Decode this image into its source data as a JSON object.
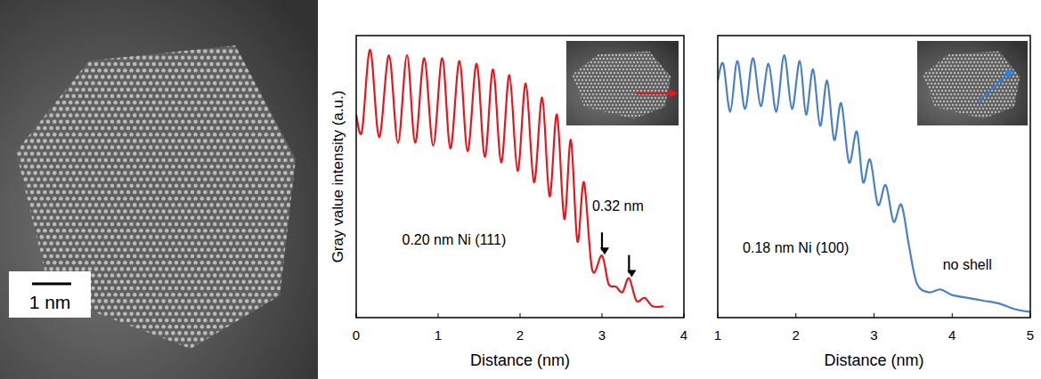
{
  "image": {
    "scale_bar": "1 nm"
  },
  "chart_data": [
    {
      "type": "line",
      "y_label": "Gray value intensity (a.u.)",
      "x_label": "Distance (nm)",
      "color": "#e4171f",
      "xlim": [
        0,
        4
      ],
      "xticks": [
        0,
        1,
        2,
        3,
        4
      ],
      "ylim": [
        0,
        100
      ],
      "tick_labels": "x",
      "x": [
        0,
        0.07,
        0.17,
        0.28,
        0.4,
        0.51,
        0.62,
        0.72,
        0.83,
        0.94,
        1.05,
        1.15,
        1.26,
        1.36,
        1.47,
        1.57,
        1.67,
        1.77,
        1.87,
        1.97,
        2.07,
        2.17,
        2.27,
        2.36,
        2.45,
        2.54,
        2.62,
        2.7,
        2.78,
        2.88,
        3.0,
        3.08,
        3.17,
        3.25,
        3.33,
        3.42,
        3.52,
        3.62,
        3.75
      ],
      "values": [
        72,
        66,
        95,
        64,
        93,
        62,
        93,
        62,
        92,
        61,
        92,
        60,
        91,
        59,
        90,
        57,
        88,
        55,
        86,
        52,
        83,
        48,
        78,
        43,
        72,
        35,
        63,
        27,
        48,
        17,
        22,
        12,
        11,
        9,
        14,
        6,
        7,
        4,
        4
      ],
      "annotations": [
        {
          "text": "0.20 nm Ni (111)"
        },
        {
          "text": "0.32 nm",
          "x": [
            3.0,
            3.33
          ]
        }
      ]
    },
    {
      "type": "line",
      "x_label": "Distance (nm)",
      "color": "#4a7fcb",
      "xlim": [
        1,
        5
      ],
      "xticks": [
        1,
        2,
        3,
        4,
        5
      ],
      "ylim": [
        0,
        100
      ],
      "tick_labels": "x",
      "x": [
        1.0,
        1.07,
        1.16,
        1.25,
        1.35,
        1.45,
        1.55,
        1.65,
        1.75,
        1.85,
        1.95,
        2.05,
        2.13,
        2.22,
        2.31,
        2.4,
        2.49,
        2.58,
        2.68,
        2.78,
        2.86,
        2.95,
        3.05,
        3.15,
        3.25,
        3.35,
        3.45,
        3.55,
        3.7,
        3.85,
        4.0,
        4.2,
        4.4,
        4.6,
        4.8,
        5.0
      ],
      "values": [
        84,
        90,
        73,
        91,
        74,
        92,
        75,
        90,
        73,
        93,
        74,
        91,
        72,
        88,
        68,
        84,
        63,
        76,
        55,
        66,
        48,
        56,
        40,
        47,
        34,
        40,
        25,
        12,
        9,
        10,
        8,
        7,
        6,
        5,
        3,
        2
      ],
      "annotations": [
        {
          "text": "0.18 nm Ni (100)"
        },
        {
          "text": "no shell"
        }
      ]
    }
  ]
}
